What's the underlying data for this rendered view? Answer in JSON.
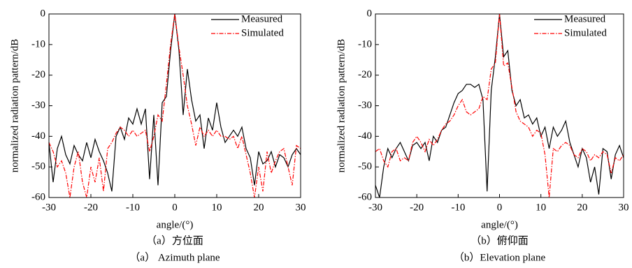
{
  "chart_data": [
    {
      "type": "line",
      "xlabel": "angle/(°)",
      "ylabel": "normalized radiation pattern/dB",
      "caption": "（a）方位面",
      "subcaption": "（a） Azimuth plane",
      "legend": "upper right",
      "xlim": [
        -30,
        30
      ],
      "ylim": [
        -60,
        0
      ],
      "xticks": [
        -30,
        -20,
        -10,
        0,
        10,
        20,
        30
      ],
      "yticks": [
        0,
        -10,
        -20,
        -30,
        -40,
        -50,
        -60
      ],
      "x": [
        -30,
        -29,
        -28,
        -27,
        -26,
        -25,
        -24,
        -23,
        -22,
        -21,
        -20,
        -19,
        -18,
        -17,
        -16,
        -15,
        -14,
        -13,
        -12,
        -11,
        -10,
        -9,
        -8,
        -7,
        -6,
        -5,
        -4,
        -3,
        -2,
        -1,
        0,
        1,
        2,
        3,
        4,
        5,
        6,
        7,
        8,
        9,
        10,
        11,
        12,
        13,
        14,
        15,
        16,
        17,
        18,
        19,
        20,
        21,
        22,
        23,
        24,
        25,
        26,
        27,
        28,
        29,
        30
      ],
      "series": [
        {
          "name": "Measured",
          "color": "#000000",
          "dash": "solid",
          "values": [
            -42,
            -55,
            -44,
            -40,
            -46,
            -49,
            -43,
            -46,
            -48,
            -42,
            -47,
            -41,
            -45,
            -48,
            -52,
            -58,
            -40,
            -37,
            -41,
            -34,
            -36,
            -31,
            -36,
            -31,
            -54,
            -33,
            -56,
            -29,
            -27,
            -12,
            0,
            -12,
            -33,
            -18,
            -28,
            -35,
            -33,
            -44,
            -34,
            -38,
            -29,
            -37,
            -42,
            -40,
            -38,
            -40,
            -37,
            -44,
            -47,
            -56,
            -45,
            -49,
            -48,
            -45,
            -50,
            -46,
            -47,
            -50,
            -46,
            -44,
            -46
          ]
        },
        {
          "name": "Simulated",
          "color": "#ff0000",
          "dash": "dashdot",
          "values": [
            -42,
            -45,
            -50,
            -48,
            -52,
            -60,
            -50,
            -45,
            -55,
            -60,
            -50,
            -55,
            -47,
            -58,
            -44,
            -42,
            -39,
            -37,
            -38,
            -40,
            -38,
            -40,
            -39,
            -38,
            -45,
            -40,
            -33,
            -35,
            -23,
            -10,
            0,
            -11,
            -20,
            -30,
            -36,
            -43,
            -37,
            -40,
            -38,
            -40,
            -38,
            -40,
            -40,
            -41,
            -40,
            -44,
            -40,
            -46,
            -52,
            -60,
            -50,
            -58,
            -45,
            -52,
            -48,
            -45,
            -44,
            -50,
            -56,
            -43,
            -44
          ]
        }
      ]
    },
    {
      "type": "line",
      "xlabel": "angle/(°)",
      "ylabel": "normalized radiation pattern/dB",
      "caption": "（b）俯仰面",
      "subcaption": "（b）Elevation plane",
      "legend": "upper right",
      "xlim": [
        -30,
        30
      ],
      "ylim": [
        -60,
        0
      ],
      "xticks": [
        -30,
        -20,
        -10,
        0,
        10,
        20,
        30
      ],
      "yticks": [
        0,
        -10,
        -20,
        -30,
        -40,
        -50,
        -60
      ],
      "x": [
        -30,
        -29,
        -28,
        -27,
        -26,
        -25,
        -24,
        -23,
        -22,
        -21,
        -20,
        -19,
        -18,
        -17,
        -16,
        -15,
        -14,
        -13,
        -12,
        -11,
        -10,
        -9,
        -8,
        -7,
        -6,
        -5,
        -4,
        -3,
        -2,
        -1,
        0,
        1,
        2,
        3,
        4,
        5,
        6,
        7,
        8,
        9,
        10,
        11,
        12,
        13,
        14,
        15,
        16,
        17,
        18,
        19,
        20,
        21,
        22,
        23,
        24,
        25,
        26,
        27,
        28,
        29,
        30
      ],
      "series": [
        {
          "name": "Measured",
          "color": "#000000",
          "dash": "solid",
          "values": [
            -56,
            -60,
            -50,
            -44,
            -47,
            -44,
            -42,
            -45,
            -48,
            -43,
            -42,
            -44,
            -42,
            -48,
            -40,
            -42,
            -38,
            -37,
            -33,
            -29,
            -26,
            -25,
            -23,
            -23,
            -24,
            -23,
            -28,
            -58,
            -25,
            -14,
            0,
            -14,
            -12,
            -25,
            -30,
            -28,
            -34,
            -33,
            -36,
            -34,
            -40,
            -37,
            -44,
            -37,
            -40,
            -38,
            -35,
            -42,
            -46,
            -50,
            -44,
            -47,
            -55,
            -50,
            -59,
            -44,
            -45,
            -54,
            -46,
            -43,
            -47
          ]
        },
        {
          "name": "Simulated",
          "color": "#ff0000",
          "dash": "dashdot",
          "values": [
            -45,
            -44,
            -48,
            -50,
            -45,
            -44,
            -48,
            -47,
            -48,
            -42,
            -40,
            -42,
            -45,
            -41,
            -43,
            -41,
            -38,
            -36,
            -35,
            -33,
            -30,
            -28,
            -32,
            -33,
            -32,
            -31,
            -27,
            -28,
            -18,
            -16,
            0,
            -17,
            -16,
            -24,
            -32,
            -35,
            -36,
            -37,
            -40,
            -38,
            -39,
            -46,
            -60,
            -44,
            -45,
            -43,
            -42,
            -43,
            -46,
            -47,
            -44,
            -45,
            -48,
            -46,
            -47,
            -45,
            -46,
            -52,
            -47,
            -48,
            -46
          ]
        }
      ]
    }
  ]
}
